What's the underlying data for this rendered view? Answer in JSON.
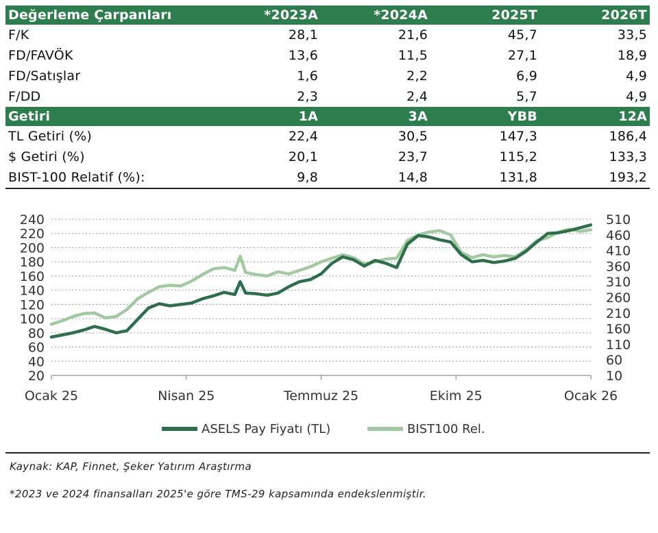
{
  "valuation": {
    "header": [
      "Değerleme Çarpanları",
      "*2023A",
      "*2024A",
      "2025T",
      "2026T"
    ],
    "rows": [
      [
        "F/K",
        "28,1",
        "21,6",
        "45,7",
        "33,5"
      ],
      [
        "FD/FAVÖK",
        "13,6",
        "11,5",
        "27,1",
        "18,9"
      ],
      [
        "FD/Satışlar",
        "1,6",
        "2,2",
        "6,9",
        "4,9"
      ],
      [
        "F/DD",
        "2,3",
        "2,4",
        "5,7",
        "4,9"
      ]
    ]
  },
  "returns": {
    "header": [
      "Getiri",
      "1A",
      "3A",
      "YBB",
      "12A"
    ],
    "rows": [
      [
        "TL Getiri (%)",
        "22,4",
        "30,5",
        "147,3",
        "186,4"
      ],
      [
        "$ Getiri (%)",
        "20,1",
        "23,7",
        "115,2",
        "133,3"
      ],
      [
        "BIST-100 Relatif (%):",
        "9,8",
        "14,8",
        "131,8",
        "193,2"
      ]
    ]
  },
  "chart_data": {
    "type": "line",
    "x_labels": [
      "Ocak 25",
      "Nisan 25",
      "Temmuz 25",
      "Ekim 25",
      "Ocak 26"
    ],
    "y_left": {
      "min": 20,
      "max": 240,
      "ticks": [
        "240",
        "220",
        "200",
        "180",
        "160",
        "140",
        "120",
        "100",
        "80",
        "60",
        "40",
        "20"
      ]
    },
    "y_right": {
      "min": 10,
      "max": 510,
      "ticks": [
        "510",
        "460",
        "410",
        "360",
        "310",
        "260",
        "210",
        "160",
        "110",
        "60",
        "10"
      ]
    },
    "series": [
      {
        "name": "ASELS Pay Fiyatı (TL)",
        "axis": "left",
        "color": "#2e6f4b",
        "x": [
          0.0,
          0.02,
          0.04,
          0.06,
          0.08,
          0.1,
          0.12,
          0.14,
          0.16,
          0.18,
          0.2,
          0.22,
          0.24,
          0.26,
          0.28,
          0.3,
          0.32,
          0.34,
          0.35,
          0.36,
          0.38,
          0.4,
          0.42,
          0.44,
          0.46,
          0.48,
          0.5,
          0.52,
          0.54,
          0.56,
          0.58,
          0.6,
          0.62,
          0.64,
          0.66,
          0.68,
          0.7,
          0.72,
          0.74,
          0.76,
          0.78,
          0.8,
          0.82,
          0.84,
          0.86,
          0.88,
          0.9,
          0.92,
          0.94,
          0.96,
          0.98,
          1.0
        ],
        "values": [
          74,
          77,
          80,
          84,
          89,
          85,
          80,
          83,
          99,
          115,
          121,
          118,
          120,
          122,
          128,
          132,
          137,
          134,
          152,
          136,
          135,
          133,
          136,
          145,
          152,
          155,
          163,
          178,
          187,
          183,
          174,
          182,
          178,
          172,
          205,
          217,
          215,
          211,
          208,
          190,
          180,
          182,
          179,
          181,
          185,
          195,
          208,
          220,
          221,
          224,
          228,
          232
        ]
      },
      {
        "name": "BIST100 Rel.",
        "axis": "left",
        "color": "#a3c9a3",
        "x": [
          0.0,
          0.02,
          0.04,
          0.06,
          0.08,
          0.1,
          0.12,
          0.14,
          0.16,
          0.18,
          0.2,
          0.22,
          0.24,
          0.26,
          0.28,
          0.3,
          0.32,
          0.34,
          0.35,
          0.36,
          0.38,
          0.4,
          0.42,
          0.44,
          0.46,
          0.48,
          0.5,
          0.52,
          0.54,
          0.56,
          0.58,
          0.6,
          0.62,
          0.64,
          0.66,
          0.68,
          0.7,
          0.72,
          0.74,
          0.76,
          0.78,
          0.8,
          0.82,
          0.84,
          0.86,
          0.88,
          0.9,
          0.92,
          0.94,
          0.96,
          0.98,
          1.0
        ],
        "values": [
          92,
          97,
          103,
          107,
          108,
          101,
          103,
          113,
          128,
          137,
          145,
          147,
          146,
          153,
          162,
          170,
          172,
          168,
          188,
          165,
          162,
          160,
          166,
          163,
          168,
          173,
          180,
          185,
          190,
          186,
          177,
          180,
          184,
          185,
          210,
          218,
          222,
          224,
          218,
          193,
          186,
          190,
          187,
          189,
          187,
          197,
          210,
          214,
          222,
          226,
          223,
          225
        ]
      }
    ],
    "legend": [
      "ASELS Pay Fiyatı (TL)",
      "BIST100 Rel."
    ]
  },
  "footer": {
    "source": "Kaynak: KAP, Finnet, Şeker Yatırım Araştırma",
    "note": "*2023 ve 2024 finansalları 2025'e göre TMS-29 kapsamında endekslenmiştir."
  },
  "colors": {
    "header_bg": "#2e7d4f",
    "dark_line": "#2e6f4b",
    "light_line": "#a3c9a3"
  }
}
